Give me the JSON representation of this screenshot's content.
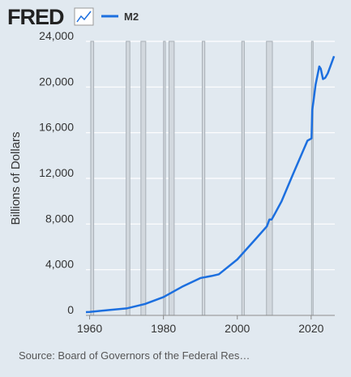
{
  "logo": "FRED",
  "source": "Source: Board of Governors of the Federal Res…",
  "chart_data": {
    "type": "line",
    "y_label": "Billions of Dollars",
    "x": [
      1959,
      1960,
      1965,
      1970,
      1975,
      1980,
      1985,
      1990,
      1993,
      1995,
      2000,
      2005,
      2008,
      2008.7,
      2009.3,
      2010,
      2012,
      2015,
      2019,
      2020.1,
      2020.3,
      2020.6,
      2021.2,
      2022.2,
      2022.6,
      2023.2,
      2023.8,
      2024.5,
      2025.3,
      2026.2
    ],
    "series": [
      {
        "name": "M2",
        "color": "#1c6fdf",
        "values": [
          286,
          300,
          460,
          610,
          1000,
          1600,
          2500,
          3270,
          3450,
          3600,
          4900,
          6700,
          7800,
          8400,
          8400,
          8800,
          10000,
          12300,
          15300,
          15500,
          18000,
          18700,
          20200,
          21800,
          21600,
          20700,
          20800,
          21200,
          21900,
          22700
        ]
      }
    ],
    "recessions": [
      [
        1960.3,
        1961.1
      ],
      [
        1969.9,
        1970.9
      ],
      [
        1973.9,
        1975.2
      ],
      [
        1980.0,
        1980.5
      ],
      [
        1981.5,
        1982.9
      ],
      [
        1990.5,
        1991.2
      ],
      [
        2001.2,
        2001.9
      ],
      [
        2007.9,
        2009.5
      ],
      [
        2020.1,
        2020.3
      ]
    ],
    "xlim": [
      1959,
      2026.4
    ],
    "xticks": [
      1960,
      1980,
      2000,
      2020
    ],
    "ylim": [
      0,
      24000
    ],
    "yticks": [
      0,
      {
        "value": 4000,
        "label": "4,000"
      },
      {
        "value": 8000,
        "label": "8,000"
      },
      {
        "value": 12000,
        "label": "12,000"
      },
      {
        "value": 16000,
        "label": "16,000"
      },
      {
        "value": 20000,
        "label": "20,000"
      },
      {
        "value": 24000,
        "label": "24,000"
      }
    ],
    "grid": true
  }
}
